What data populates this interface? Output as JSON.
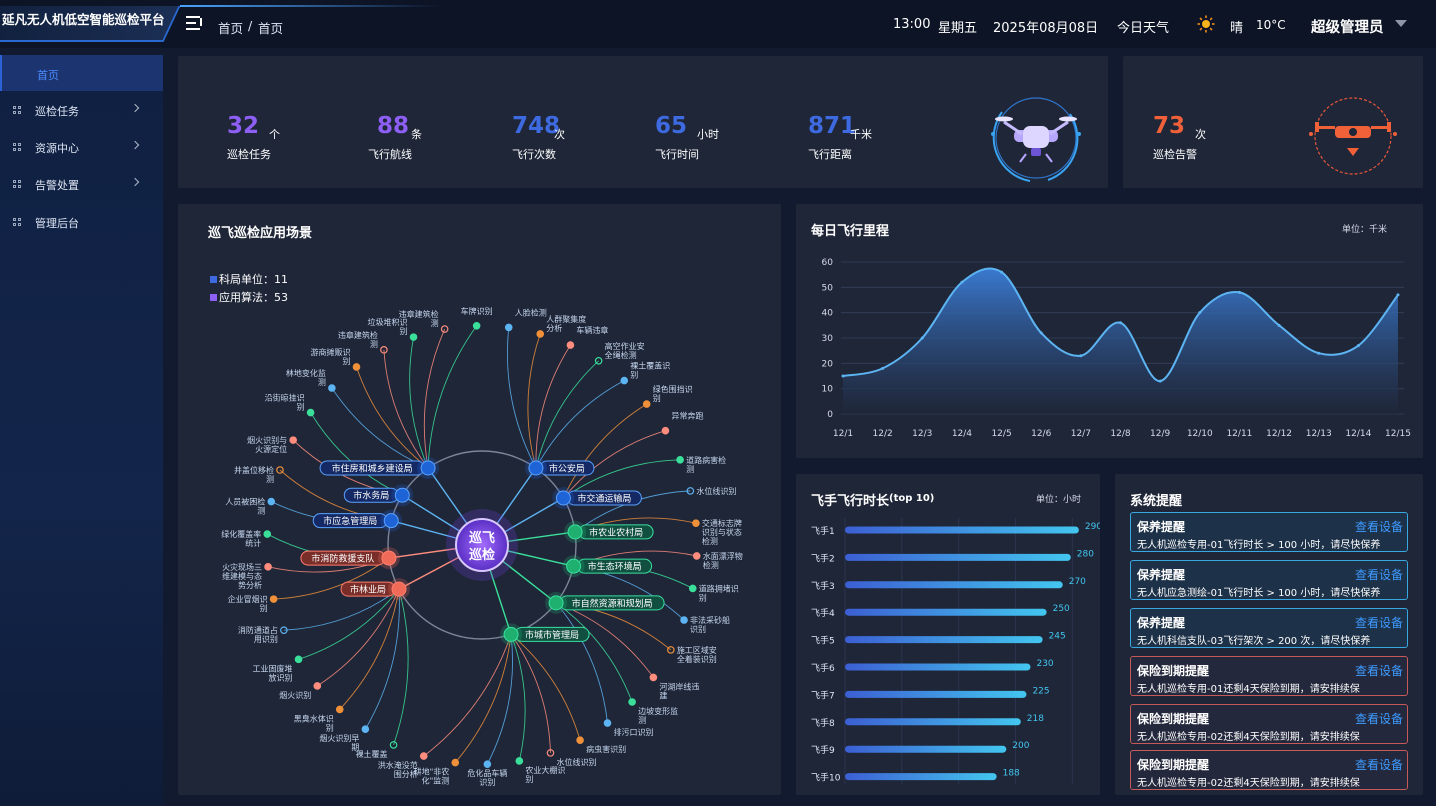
{
  "header": {
    "app_title": "延凡无人机低空智能巡检平台",
    "breadcrumb": [
      "首页",
      "首页"
    ],
    "breadcrumb_sep": "/",
    "time": "13:00",
    "weekday": "星期五",
    "date": "2025年08月08日",
    "weather_label": "今日天气",
    "weather_icon": "sun-icon",
    "weather": "晴",
    "temperature": "10°C",
    "user": "超级管理员"
  },
  "sidebar": {
    "active": "首页",
    "items": [
      {
        "label": "巡检任务",
        "expandable": true
      },
      {
        "label": "资源中心",
        "expandable": true
      },
      {
        "label": "告警处置",
        "expandable": true
      },
      {
        "label": "管理后台",
        "expandable": false
      }
    ]
  },
  "stats": [
    {
      "value": "32",
      "unit": "个",
      "label": "巡检任务",
      "color": "#8e5ff5"
    },
    {
      "value": "88",
      "unit": "条",
      "label": "飞行航线",
      "color": "#8e5ff5"
    },
    {
      "value": "748",
      "unit": "次",
      "label": "飞行次数",
      "color": "#3d6ae0"
    },
    {
      "value": "65",
      "unit": "小时",
      "label": "飞行时间",
      "color": "#3d6ae0"
    },
    {
      "value": "871",
      "unit": "千米",
      "label": "飞行距离",
      "color": "#3d6ae0"
    }
  ],
  "alarm_stat": {
    "value": "73",
    "unit": "次",
    "label": "巡检告警",
    "color": "#f0613a"
  },
  "scenario": {
    "title": "巡飞巡检应用场景",
    "legend": [
      {
        "label": "科局单位：",
        "value": "11",
        "color": "#3d6ae0"
      },
      {
        "label": "应用算法：",
        "value": "53",
        "color": "#8e5ff5"
      }
    ],
    "center": [
      "巡飞",
      "巡检"
    ],
    "departments": [
      {
        "name": "市住房和城乡建设局",
        "style": "blue"
      },
      {
        "name": "市公安局",
        "style": "blue"
      },
      {
        "name": "市水务局",
        "style": "blue"
      },
      {
        "name": "市交通运输局",
        "style": "blue"
      },
      {
        "name": "市应急管理局",
        "style": "blue"
      },
      {
        "name": "市农业农村局",
        "style": "green"
      },
      {
        "name": "市消防救援支队",
        "style": "red"
      },
      {
        "name": "市生态环境局",
        "style": "green"
      },
      {
        "name": "市林业局",
        "style": "red"
      },
      {
        "name": "市自然资源和规划局",
        "style": "green"
      },
      {
        "name": "市城市管理局",
        "style": "green"
      }
    ],
    "algorithms": [
      "违章建筑检测",
      "车牌识别",
      "人脸检测",
      "人群聚集度分析",
      "车辆违章",
      "高空作业安全绳检测",
      "裸土覆盖识别",
      "绿色围挡识别",
      "异常奔跑",
      "道路病害检测",
      "水位线识别",
      "交通标志牌识别与状态检测",
      "水面漂浮物检测",
      "道路拥堵识别",
      "非法采砂船识别",
      "施工区域安全着装识别",
      "河湖岸线违建",
      "边坡变形监测",
      "排污口识别",
      "病虫害识别",
      "水位线识别",
      "农业大棚识别",
      "危化品车辆识别",
      "耕地\"非农化\"监测",
      "洪水淹没范围分析",
      "裸土覆盖",
      "烟火识别早期",
      "黑臭水体识别",
      "烟火识别",
      "工业固废堆放识别",
      "消防通道占用识别",
      "企业冒烟识别",
      "火灾现场三维建模与态势分析",
      "绿化覆盖率统计",
      "人员被困检测",
      "井盖位移检测",
      "烟火识别与火源定位",
      "沿街晾挂识别",
      "林地变化监测",
      "游商摊贩识别",
      "违章建筑检测",
      "垃圾堆积识别"
    ]
  },
  "mileage": {
    "title": "每日飞行里程",
    "unit_note": "单位：千米"
  },
  "pilot_hours": {
    "title": "飞手飞行时长",
    "title_suffix": "(top 10)",
    "unit_note": "单位：小时"
  },
  "chart_data": [
    {
      "type": "area",
      "title": "每日飞行里程",
      "x": [
        "12/1",
        "12/2",
        "12/3",
        "12/4",
        "12/5",
        "12/6",
        "12/7",
        "12/8",
        "12/9",
        "12/10",
        "12/11",
        "12/12",
        "12/13",
        "12/14",
        "12/15"
      ],
      "values": [
        15,
        18,
        30,
        52,
        56,
        32,
        23,
        36,
        13,
        40,
        48,
        35,
        24,
        27,
        47
      ],
      "ylim": [
        0,
        60
      ],
      "yticks": [
        0,
        10,
        20,
        30,
        40,
        50,
        60
      ],
      "grid": true,
      "color": "#3b7ed8"
    },
    {
      "type": "bar",
      "orientation": "horizontal",
      "title": "飞手飞行时长(top 10)",
      "categories": [
        "飞手1",
        "飞手2",
        "飞手3",
        "飞手4",
        "飞手5",
        "飞手6",
        "飞手7",
        "飞手8",
        "飞手9",
        "飞手10"
      ],
      "values": [
        290,
        280,
        270,
        250,
        245,
        230,
        225,
        218,
        200,
        188
      ],
      "xlim": [
        0,
        310
      ],
      "color": "#3aa0e8"
    }
  ],
  "alerts": {
    "title": "系统提醒",
    "link_label": "查看设备",
    "items": [
      {
        "title": "保养提醒",
        "message": "无人机巡检专用-01飞行时长 > 100 小时，请尽快保养",
        "color": "#3aa8e0"
      },
      {
        "title": "保养提醒",
        "message": "无人机应急测绘-01飞行时长 > 100 小时，请尽快保养",
        "color": "#3aa8e0"
      },
      {
        "title": "保养提醒",
        "message": "无人机科信支队-03飞行架次 > 200 次，请尽快保养",
        "color": "#3aa8e0"
      },
      {
        "title": "保险到期提醒",
        "message": "无人机巡检专用-01还剩4天保险到期，请安排续保",
        "color": "#c45a5a"
      },
      {
        "title": "保险到期提醒",
        "message": "无人机巡检专用-02还剩4天保险到期，请安排续保",
        "color": "#c45a5a"
      },
      {
        "title": "保险到期提醒",
        "message": "无人机巡检专用-02还剩4天保险到期，请安排续保",
        "color": "#c45a5a"
      }
    ]
  }
}
